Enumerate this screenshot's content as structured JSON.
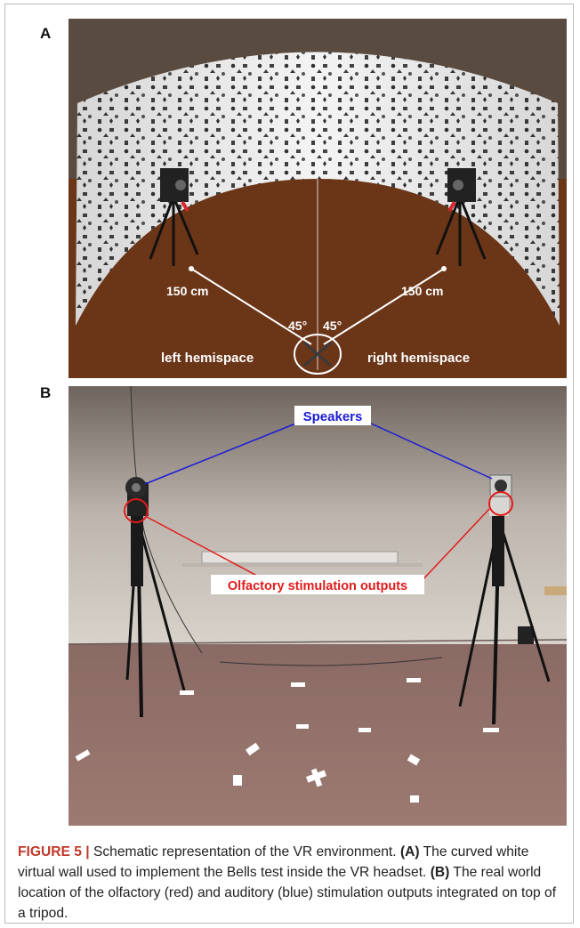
{
  "panels": {
    "a_label": "A",
    "b_label": "B"
  },
  "panel_a": {
    "left_distance": "150 cm",
    "right_distance": "150 cm",
    "left_angle": "45°",
    "right_angle": "45°",
    "left_hemispace": "left hemispace",
    "right_hemispace": "right hemispace"
  },
  "panel_b": {
    "speakers_label": "Speakers",
    "olfactory_label": "Olfactory stimulation outputs",
    "speakers_color": "#1c1cd6",
    "olfactory_color": "#e01b1b"
  },
  "caption": {
    "figure_label": "FIGURE 5 |",
    "intro": " Schematic representation of the VR environment. ",
    "a_ref": "(A)",
    "a_text": " The curved white virtual wall used to implement the Bells test inside the VR headset. ",
    "b_ref": "(B)",
    "b_text": " The real world location of the olfactory (red) and auditory (blue) stimulation outputs integrated on top of a tripod."
  }
}
